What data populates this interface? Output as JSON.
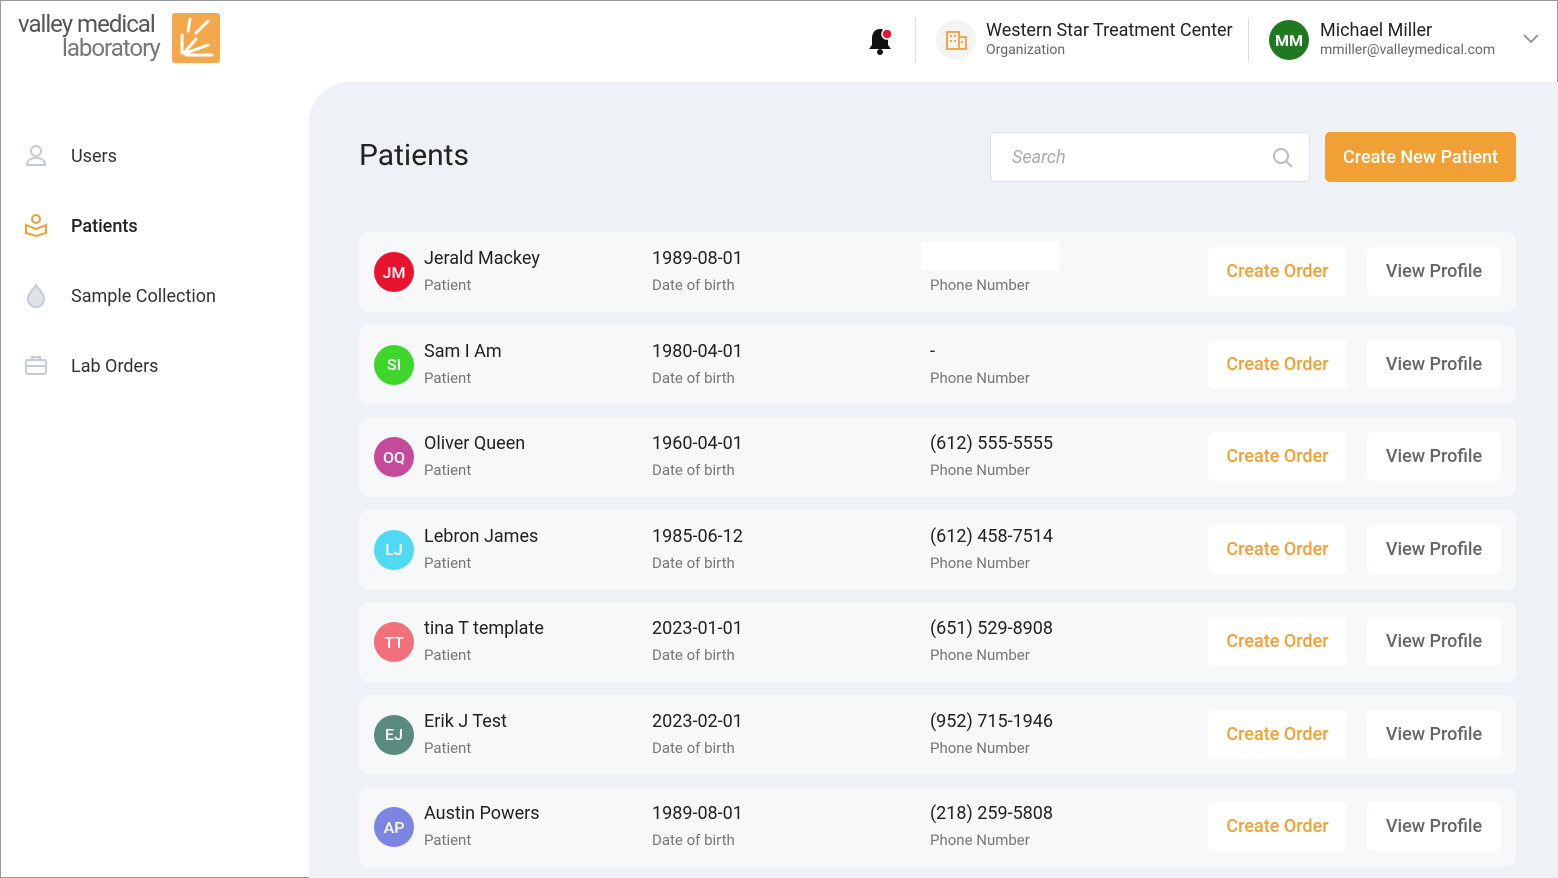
{
  "header": {
    "logo": {
      "line1": "valley medical",
      "line2": "laboratory"
    },
    "organization": {
      "name": "Western Star Treatment Center",
      "label": "Organization"
    },
    "user": {
      "initials": "MM",
      "name": "Michael Miller",
      "email": "mmiller@valleymedical.com"
    }
  },
  "sidebar": {
    "items": [
      "Users",
      "Patients",
      "Sample Collection",
      "Lab Orders"
    ],
    "active": 1
  },
  "page": {
    "title": "Patients",
    "search_placeholder": "Search",
    "create_button": "Create New Patient"
  },
  "table": {
    "labels": {
      "role": "Patient",
      "dob": "Date of birth",
      "phone": "Phone Number",
      "create": "Create Order",
      "view": "View Profile"
    },
    "rows": [
      {
        "initials": "JM",
        "avatar_color": "#e8132e",
        "name": "Jerald Mackey",
        "dob": "1989-08-01"
      },
      {
        "initials": "SI",
        "avatar_color": "#3ed62a",
        "name": "Sam I Am",
        "dob": "1980-04-01",
        "phone": "-"
      },
      {
        "initials": "OQ",
        "avatar_color": "#c44b9a",
        "name": "Oliver Queen",
        "dob": "1960-04-01",
        "phone": "(612) 555-5555"
      },
      {
        "initials": "LJ",
        "avatar_color": "#4fd9f2",
        "name": "Lebron James",
        "dob": "1985-06-12",
        "phone": "(612) 458-7514"
      },
      {
        "initials": "TT",
        "avatar_color": "#f2707a",
        "name": "tina T template",
        "dob": "2023-01-01",
        "phone": "(651) 529-8908"
      },
      {
        "initials": "EJ",
        "avatar_color": "#5b8a7f",
        "name": "Erik J Test",
        "dob": "2023-02-01",
        "phone": "(952) 715-1946"
      },
      {
        "initials": "AP",
        "avatar_color": "#7c86e2",
        "name": "Austin Powers",
        "dob": "1989-08-01",
        "phone": "(218) 259-5808"
      }
    ]
  }
}
